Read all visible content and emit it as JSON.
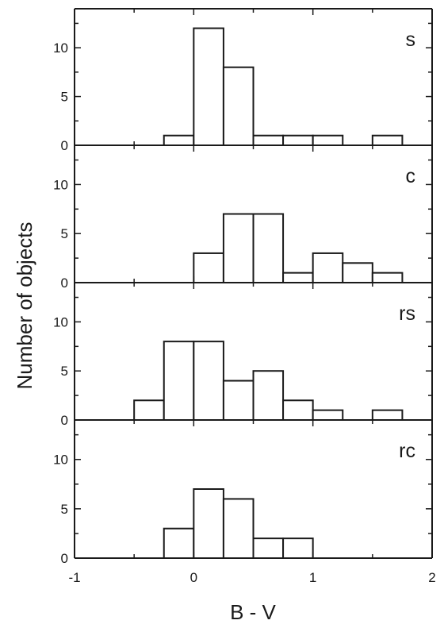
{
  "chart_data": {
    "type": "bar",
    "subtype": "histogram",
    "xlabel": "B - V",
    "ylabel": "Number of objects",
    "xlim": [
      -1,
      2
    ],
    "x_ticks": [
      "-1",
      "0",
      "1",
      "2"
    ],
    "bin_width": 0.25,
    "bin_edges": [
      -1.0,
      -0.75,
      -0.5,
      -0.25,
      0.0,
      0.25,
      0.5,
      0.75,
      1.0,
      1.25,
      1.5,
      1.75,
      2.0
    ],
    "panels": [
      {
        "label": "s",
        "ylim": [
          0,
          14
        ],
        "y_ticks": [
          "0",
          "5",
          "10"
        ],
        "counts": [
          0,
          0,
          0,
          1,
          12,
          8,
          1,
          1,
          1,
          0,
          1,
          0
        ]
      },
      {
        "label": "c",
        "ylim": [
          0,
          14
        ],
        "y_ticks": [
          "0",
          "5",
          "10"
        ],
        "counts": [
          0,
          0,
          0,
          0,
          3,
          7,
          7,
          1,
          3,
          2,
          1,
          0
        ]
      },
      {
        "label": "rs",
        "ylim": [
          0,
          14
        ],
        "y_ticks": [
          "0",
          "5",
          "10"
        ],
        "counts": [
          0,
          0,
          2,
          8,
          8,
          4,
          5,
          2,
          1,
          0,
          1,
          0
        ]
      },
      {
        "label": "rc",
        "ylim": [
          0,
          14
        ],
        "y_ticks": [
          "0",
          "5",
          "10"
        ],
        "counts": [
          0,
          0,
          0,
          3,
          7,
          6,
          2,
          2,
          0,
          0,
          0,
          0
        ]
      }
    ],
    "grid": false,
    "legend": "none"
  }
}
